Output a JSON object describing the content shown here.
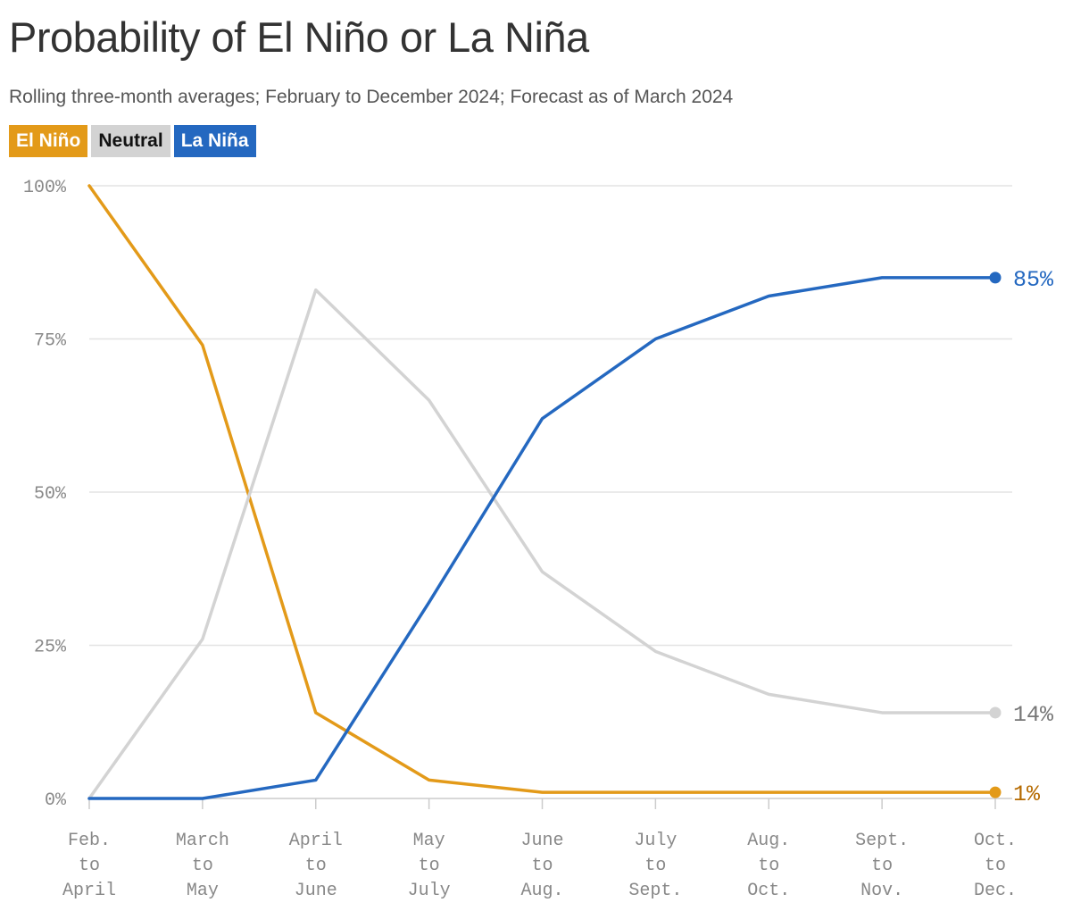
{
  "title": "Probability of El Niño or La Niña",
  "subtitle": "Rolling three-month averages; February to December 2024; Forecast as of March 2024",
  "legend": [
    {
      "label": "El Niño",
      "color": "#e39a19",
      "text_color": "#ffffff"
    },
    {
      "label": "Neutral",
      "color": "#d3d3d3",
      "text_color": "#111111"
    },
    {
      "label": "La Niña",
      "color": "#2468c0",
      "text_color": "#ffffff"
    }
  ],
  "chart_data": {
    "type": "line",
    "categories": [
      [
        "Feb.",
        "to",
        "April"
      ],
      [
        "March",
        "to",
        "May"
      ],
      [
        "April",
        "to",
        "June"
      ],
      [
        "May",
        "to",
        "July"
      ],
      [
        "June",
        "to",
        "Aug."
      ],
      [
        "July",
        "to",
        "Sept."
      ],
      [
        "Aug.",
        "to",
        "Oct."
      ],
      [
        "Sept.",
        "to",
        "Nov."
      ],
      [
        "Oct.",
        "to",
        "Dec."
      ]
    ],
    "series": [
      {
        "name": "El Niño",
        "color": "#e39a19",
        "label_color": "#b56a00",
        "values": [
          100,
          74,
          14,
          3,
          1,
          1,
          1,
          1,
          1
        ],
        "end_label": "1%"
      },
      {
        "name": "Neutral",
        "color": "#d3d3d3",
        "label_color": "#777777",
        "values": [
          0,
          26,
          83,
          65,
          37,
          24,
          17,
          14,
          14
        ],
        "end_label": "14%"
      },
      {
        "name": "La Niña",
        "color": "#2468c0",
        "label_color": "#2468c0",
        "values": [
          0,
          0,
          3,
          32,
          62,
          75,
          82,
          85,
          85
        ],
        "end_label": "85%"
      }
    ],
    "yticks": [
      {
        "value": 0,
        "label": "0%"
      },
      {
        "value": 25,
        "label": "25%"
      },
      {
        "value": 50,
        "label": "50%"
      },
      {
        "value": 75,
        "label": "75%"
      },
      {
        "value": 100,
        "label": "100%"
      }
    ],
    "ylim": [
      0,
      100
    ],
    "grid": true
  }
}
